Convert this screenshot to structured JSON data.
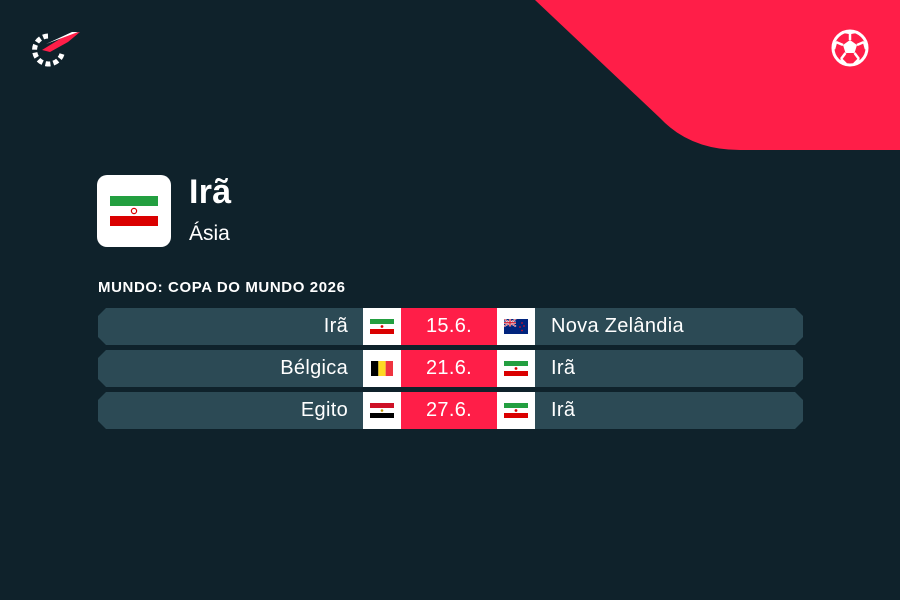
{
  "colors": {
    "background": "#0f222b",
    "accent": "#ff1e48",
    "row": "#2c4a55"
  },
  "header": {
    "logo_icon": "flashscore-logo-icon",
    "sport_icon": "soccer-ball-icon"
  },
  "team": {
    "name": "Irã",
    "region": "Ásia",
    "flag_icon": "flag-iran"
  },
  "competition": "MUNDO: COPA DO MUNDO 2026",
  "matches": [
    {
      "home": "Irã",
      "home_flag": "flag-iran",
      "date": "15.6.",
      "away": "Nova Zelândia",
      "away_flag": "flag-new-zealand"
    },
    {
      "home": "Bélgica",
      "home_flag": "flag-belgium",
      "date": "21.6.",
      "away": "Irã",
      "away_flag": "flag-iran"
    },
    {
      "home": "Egito",
      "home_flag": "flag-egypt",
      "date": "27.6.",
      "away": "Irã",
      "away_flag": "flag-iran"
    }
  ]
}
